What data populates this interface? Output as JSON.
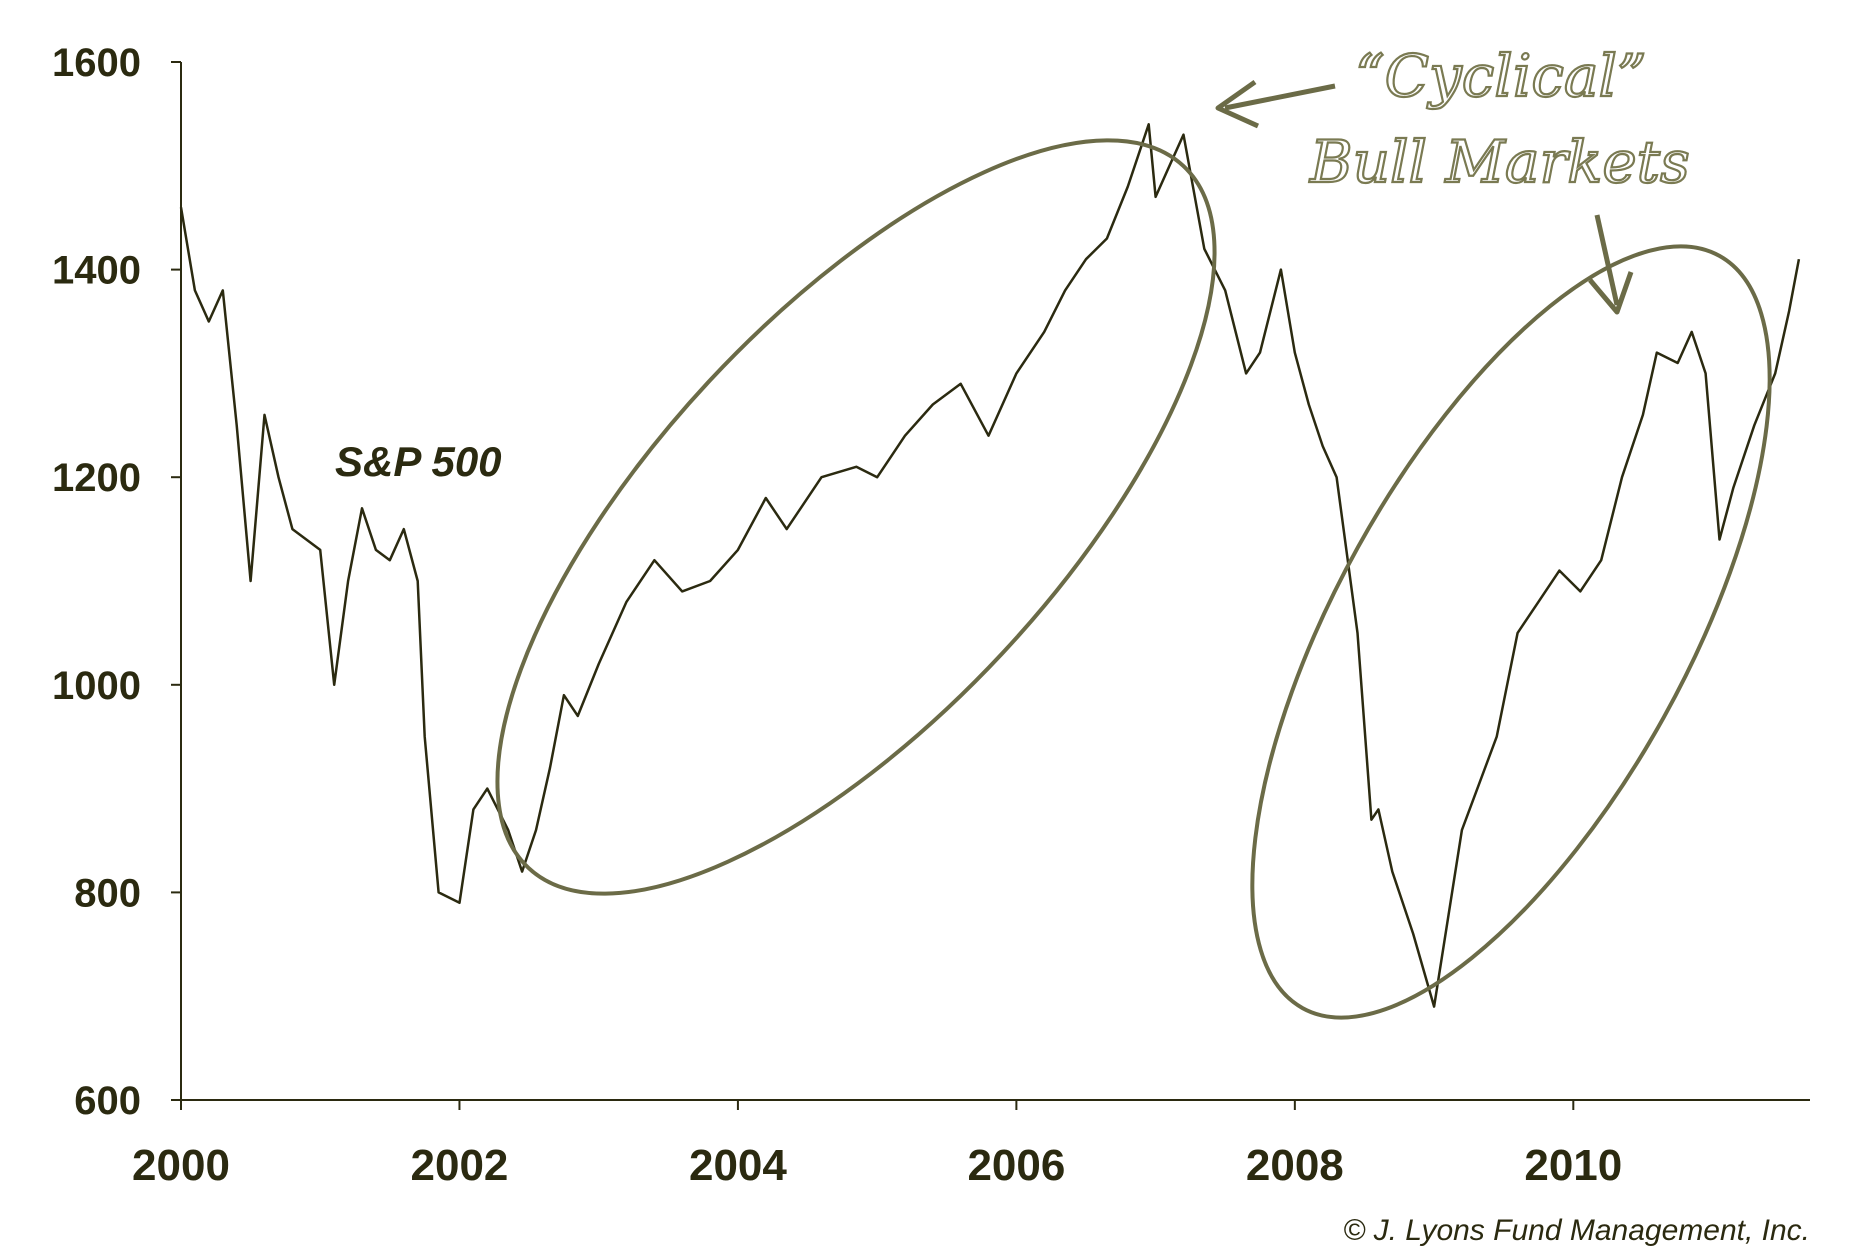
{
  "chart_data": {
    "type": "line",
    "series_label": "S&P 500",
    "x_ticks": [
      "2000",
      "2002",
      "2004",
      "2006",
      "2008",
      "2010"
    ],
    "y_ticks": [
      "600",
      "800",
      "1000",
      "1200",
      "1400",
      "1600"
    ],
    "xlim": [
      2000,
      2011.7
    ],
    "ylim": [
      600,
      1600
    ],
    "grid": false,
    "series": [
      {
        "x": [
          2000.0,
          2000.1,
          2000.2,
          2000.3,
          2000.4,
          2000.5,
          2000.6,
          2000.7,
          2000.8,
          2000.9,
          2001.0,
          2001.1,
          2001.2,
          2001.3,
          2001.4,
          2001.5,
          2001.6,
          2001.7,
          2001.75,
          2001.85,
          2002.0,
          2002.1,
          2002.2,
          2002.35,
          2002.45,
          2002.55,
          2002.65,
          2002.75,
          2002.85,
          2003.0,
          2003.2,
          2003.4,
          2003.6,
          2003.8,
          2004.0,
          2004.2,
          2004.35,
          2004.6,
          2004.85,
          2005.0,
          2005.2,
          2005.4,
          2005.6,
          2005.8,
          2006.0,
          2006.2,
          2006.35,
          2006.5,
          2006.65,
          2006.8,
          2006.95,
          2007.0,
          2007.1,
          2007.2,
          2007.35,
          2007.5,
          2007.65,
          2007.75,
          2007.9,
          2008.0,
          2008.1,
          2008.2,
          2008.3,
          2008.45,
          2008.55,
          2008.6,
          2008.7,
          2008.85,
          2009.0,
          2009.2,
          2009.45,
          2009.6,
          2009.75,
          2009.9,
          2010.05,
          2010.2,
          2010.35,
          2010.5,
          2010.6,
          2010.75,
          2010.85,
          2010.95,
          2011.05,
          2011.15,
          2011.3,
          2011.45,
          2011.55,
          2011.62
        ],
        "y": [
          1460,
          1380,
          1350,
          1380,
          1250,
          1100,
          1260,
          1200,
          1150,
          1140,
          1130,
          1000,
          1100,
          1170,
          1130,
          1120,
          1150,
          1100,
          950,
          800,
          790,
          880,
          900,
          860,
          820,
          860,
          920,
          990,
          970,
          1020,
          1080,
          1120,
          1090,
          1100,
          1130,
          1180,
          1150,
          1200,
          1210,
          1200,
          1240,
          1270,
          1290,
          1240,
          1300,
          1340,
          1380,
          1410,
          1430,
          1480,
          1540,
          1470,
          1500,
          1530,
          1420,
          1380,
          1300,
          1320,
          1400,
          1320,
          1270,
          1230,
          1200,
          1050,
          870,
          880,
          820,
          760,
          690,
          860,
          950,
          1050,
          1080,
          1110,
          1090,
          1120,
          1200,
          1260,
          1320,
          1310,
          1340,
          1300,
          1140,
          1190,
          1250,
          1300,
          1360,
          1410
        ]
      }
    ],
    "annotations": {
      "callout_line1": "“Cyclical”",
      "callout_line2": "Bull Markets"
    },
    "credit": "© J. Lyons Fund Management, Inc.",
    "colors": {
      "line": "#2b2a10",
      "ellipse": "#6b6b47",
      "annotation": "#7a7a52",
      "axis": "#2b2a10"
    }
  }
}
